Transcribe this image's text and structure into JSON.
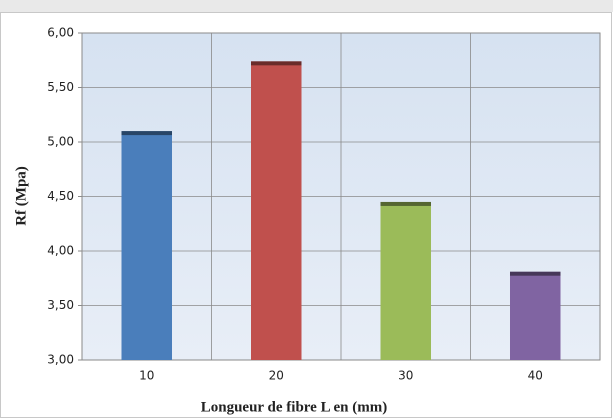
{
  "chart_data": {
    "type": "bar",
    "y_label": "Rf (Mpa)",
    "x_label": "Longueur de fibre L en  (mm)",
    "categories": [
      "10",
      "20",
      "30",
      "40"
    ],
    "values": [
      5.1,
      5.74,
      4.45,
      3.81
    ],
    "colors": [
      "#4a7ebb",
      "#c0504d",
      "#9bbb59",
      "#8064a2"
    ],
    "ylim": [
      3,
      6
    ],
    "yticks": [
      {
        "value": 3,
        "label": "3,00"
      },
      {
        "value": 3.5,
        "label": "3,50"
      },
      {
        "value": 4,
        "label": "4,00"
      },
      {
        "value": 4.5,
        "label": "4,50"
      },
      {
        "value": 5,
        "label": "5,00"
      },
      {
        "value": 5.5,
        "label": "5,50"
      },
      {
        "value": 6,
        "label": "6,00"
      }
    ],
    "grid": true
  }
}
